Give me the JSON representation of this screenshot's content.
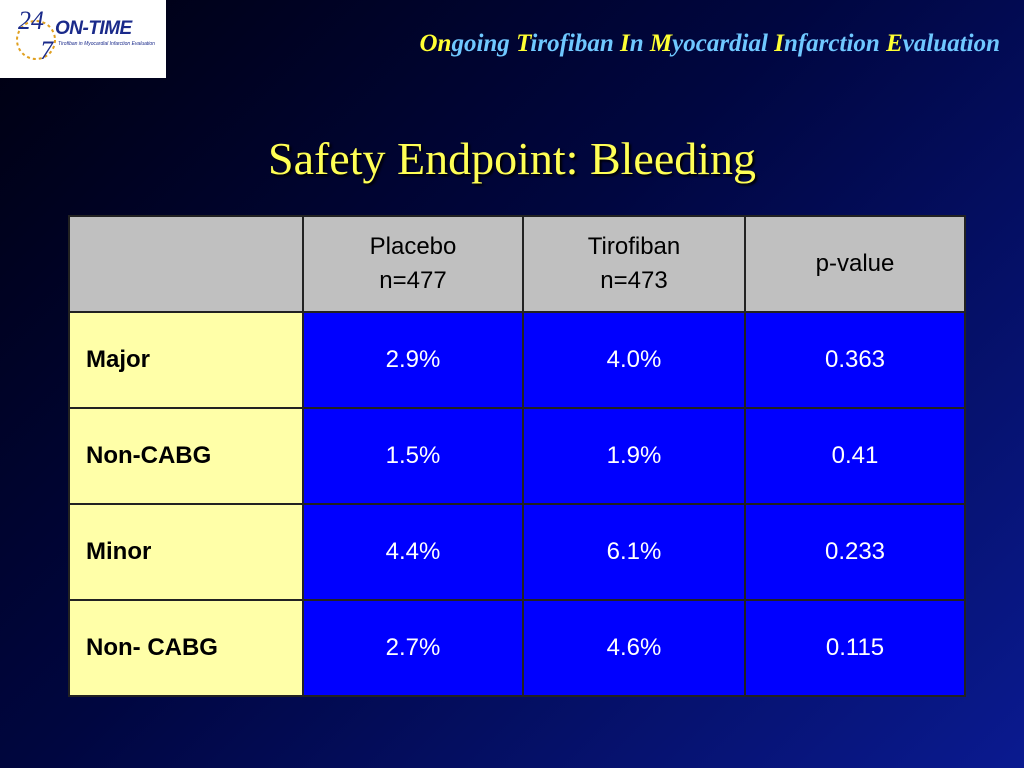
{
  "logo": {
    "top": "24",
    "bottom": "7",
    "name": "ON-TIME",
    "tagline": "Tirofiban in Myocardial Infarction Evaluation"
  },
  "header": {
    "words": [
      {
        "initial": "On",
        "rest": "going"
      },
      {
        "initial": "T",
        "rest": "irofiban"
      },
      {
        "initial": "I",
        "rest": "n"
      },
      {
        "initial": "M",
        "rest": "yocardial"
      },
      {
        "initial": "I",
        "rest": "nfarction"
      },
      {
        "initial": "E",
        "rest": "valuation"
      }
    ]
  },
  "title": "Safety Endpoint: Bleeding",
  "table": {
    "columns": [
      [
        "Placebo",
        "n=477"
      ],
      [
        "Tirofiban",
        "n=473"
      ],
      [
        "p-value"
      ]
    ],
    "rows": [
      [
        "Major",
        "2.9%",
        "4.0%",
        "0.363"
      ],
      [
        "Non-CABG",
        "1.5%",
        "1.9%",
        "0.41"
      ],
      [
        "Minor",
        "4.4%",
        "6.1%",
        "0.233"
      ],
      [
        "Non- CABG",
        "2.7%",
        "4.6%",
        "0.115"
      ]
    ]
  }
}
